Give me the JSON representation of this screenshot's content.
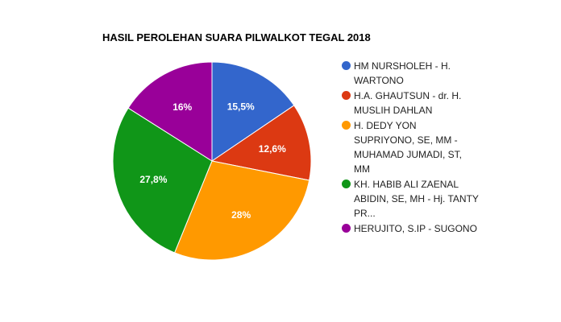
{
  "chart_data": {
    "type": "pie",
    "title": "HASIL PEROLEHAN SUARA PILWALKOT TEGAL 2018",
    "legend_position": "right",
    "slices": [
      {
        "name": "HM NURSHOLEH - H. WARTONO",
        "value": 15.5,
        "label": "15,5%",
        "color": "#3366cc"
      },
      {
        "name": "H.A. GHAUTSUN - dr. H. MUSLIH DAHLAN",
        "value": 12.6,
        "label": "12,6%",
        "color": "#dc3912"
      },
      {
        "name": "H. DEDY YON SUPRIYONO, SE, MM - MUHAMAD JUMADI, ST, MM",
        "value": 28,
        "label": "28%",
        "color": "#ff9900"
      },
      {
        "name": "KH. HABIB ALI ZAENAL ABIDIN, SE, MH - Hj. TANTY PR...",
        "value": 27.8,
        "label": "27,8%",
        "color": "#109618"
      },
      {
        "name": "HERUJITO, S.IP - SUGONO",
        "value": 16,
        "label": "16%",
        "color": "#990099"
      }
    ]
  }
}
